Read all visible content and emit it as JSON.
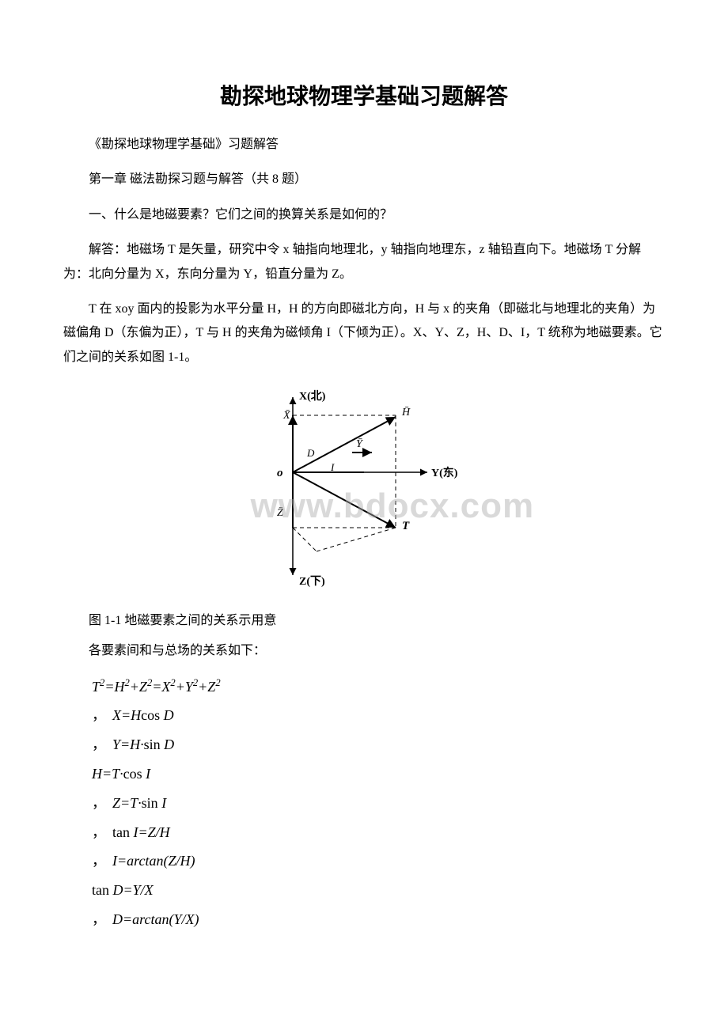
{
  "title": "勘探地球物理学基础习题解答",
  "paragraphs": {
    "p1": "《勘探地球物理学基础》习题解答",
    "p2": "第一章 磁法勘探习题与解答（共 8 题）",
    "p3": "一、什么是地磁要素？它们之间的换算关系是如何的？",
    "p4": "解答：地磁场 T 是矢量，研究中令 x 轴指向地理北，y 轴指向地理东，z 轴铅直向下。地磁场 T 分解为：北向分量为 X，东向分量为 Y，铅直分量为 Z。",
    "p5": "T 在 xoy 面内的投影为水平分量 H，H 的方向即磁北方向，H 与 x 的夹角（即磁北与地理北的夹角）为磁偏角 D（东偏为正），T 与 H 的夹角为磁倾角 I（下倾为正）。X、Y、Z，H、D、I，T 统称为地磁要素。它们之间的关系如图 1-1。"
  },
  "diagram": {
    "labels": {
      "x_north": "X(北)",
      "y_east": "Y(东)",
      "z_down": "Z(下)",
      "origin": "o",
      "x_vec": "X",
      "y_vec": "Y",
      "z_vec": "Z",
      "h_vec": "H",
      "t_vec": "T",
      "d_angle": "D",
      "i_angle": "I"
    },
    "colors": {
      "stroke": "#000000",
      "text": "#000000"
    }
  },
  "watermark": "www.bdocx.com",
  "caption": "图 1-1 地磁要素之间的关系示用意",
  "relations_intro": "各要素间和与总场的关系如下：",
  "formulas": {
    "f1_html": "T<sup>2</sup>=H<sup>2</sup>+Z<sup>2</sup>=X<sup>2</sup>+Y<sup>2</sup>+Z<sup>2</sup>",
    "f2_html": "<span class=\"comma\">，</span>X=H<span class=\"func\">cos</span> D",
    "f3_html": "<span class=\"comma\">，</span>Y=H·<span class=\"func\">sin</span> D",
    "f4_html": "H=T·<span class=\"func\">cos</span> I",
    "f5_html": "<span class=\"comma\">，</span>Z=T·<span class=\"func\">sin</span> I",
    "f6_html": "<span class=\"comma\">，</span><span class=\"func\">tan</span> I=Z/H",
    "f7_html": "<span class=\"comma\">，</span>I=arctan(Z/H)",
    "f8_html": "<span class=\"func\">tan</span> D=Y/X",
    "f9_html": "<span class=\"comma\">，</span>D=arctan(Y/X)"
  }
}
